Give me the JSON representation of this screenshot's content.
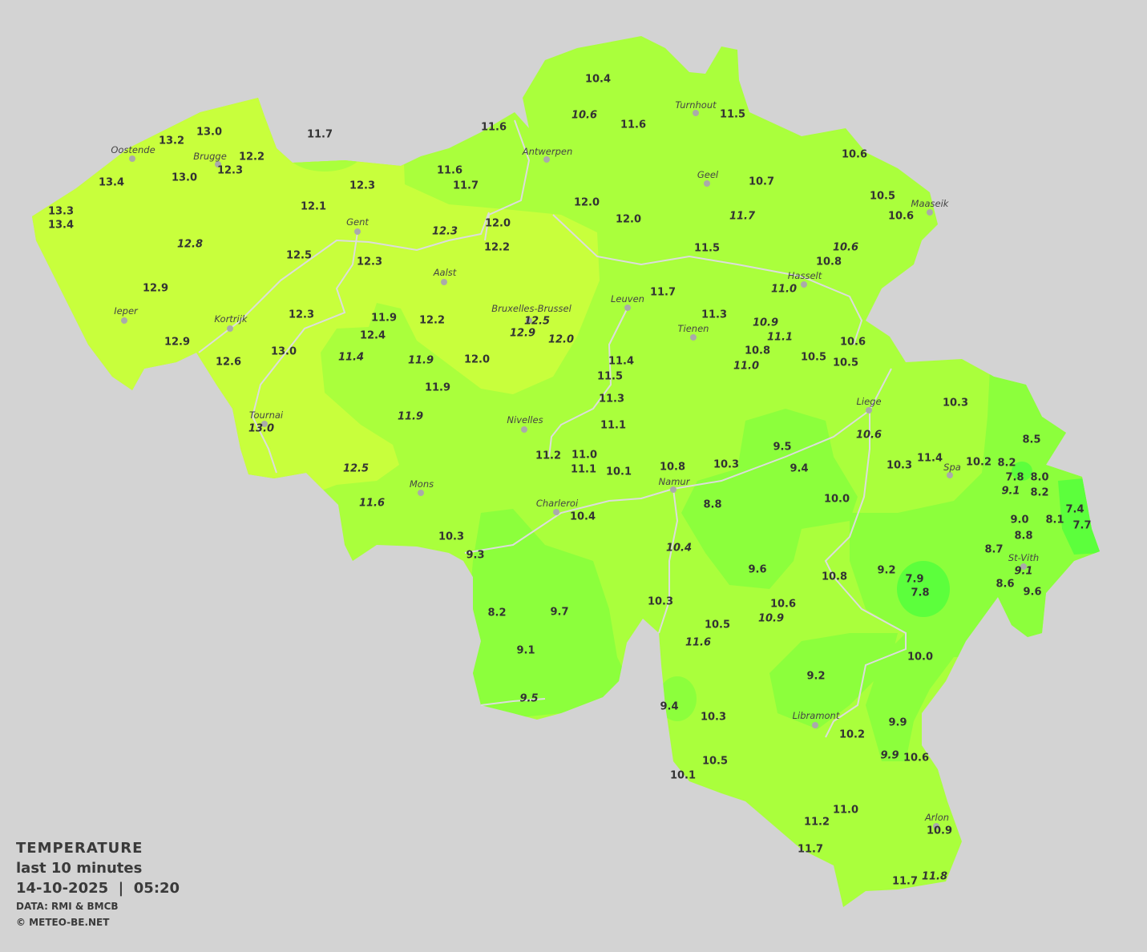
{
  "legend": {
    "title": "TEMPERATURE",
    "subtitle": "last 10 minutes",
    "datetime": "14-10-2025  |  05:20",
    "data_source": "DATA: RMI & BMCB",
    "copyright": "© METEO-BE.NET"
  },
  "colors": {
    "background": "#d3d3d3",
    "warm_12_13": "#c8ff3c",
    "mild_10_12": "#aaff3c",
    "cool_8_10": "#8cff3c",
    "cold_below_8": "#5cff3c",
    "borders": "#dcdcdc",
    "city_dot": "#aaaaaa"
  },
  "cities": [
    "Turnhout",
    "Oostende",
    "Brugge",
    "Antwerpen",
    "Geel",
    "Maaseik",
    "Gent",
    "Hasselt",
    "Aalst",
    "Leuven",
    "Ieper",
    "Bruxelles-Brussel",
    "Kortrijk",
    "Tienen",
    "Liege",
    "Tournai",
    "Nivelles",
    "Spa",
    "Namur",
    "Mons",
    "Charleroi",
    "St-Vith",
    "Libramont",
    "Arlon"
  ],
  "stations": [
    {
      "t": "10.4",
      "italic": false
    },
    {
      "t": "10.6",
      "italic": true
    },
    {
      "t": "11.6",
      "italic": false
    },
    {
      "t": "11.5",
      "italic": false
    },
    {
      "t": "11.6",
      "italic": false
    },
    {
      "t": "11.7",
      "italic": false
    },
    {
      "t": "13.0",
      "italic": false
    },
    {
      "t": "13.2",
      "italic": false
    },
    {
      "t": "12.2",
      "italic": false
    },
    {
      "t": "12.3",
      "italic": false
    },
    {
      "t": "10.6",
      "italic": false
    },
    {
      "t": "11.6",
      "italic": false
    },
    {
      "t": "11.7",
      "italic": false
    },
    {
      "t": "13.4",
      "italic": false
    },
    {
      "t": "13.0",
      "italic": false
    },
    {
      "t": "12.3",
      "italic": false
    },
    {
      "t": "10.7",
      "italic": false
    },
    {
      "t": "10.5",
      "italic": false
    },
    {
      "t": "10.6",
      "italic": false
    },
    {
      "t": "12.0",
      "italic": false
    },
    {
      "t": "12.0",
      "italic": false
    },
    {
      "t": "11.7",
      "italic": true
    },
    {
      "t": "13.3",
      "italic": false
    },
    {
      "t": "13.4",
      "italic": false
    },
    {
      "t": "12.1",
      "italic": false
    },
    {
      "t": "12.0",
      "italic": false
    },
    {
      "t": "12.3",
      "italic": true
    },
    {
      "t": "12.2",
      "italic": false
    },
    {
      "t": "12.8",
      "italic": true
    },
    {
      "t": "12.5",
      "italic": false
    },
    {
      "t": "12.3",
      "italic": false
    },
    {
      "t": "11.5",
      "italic": false
    },
    {
      "t": "10.6",
      "italic": true
    },
    {
      "t": "10.8",
      "italic": false
    },
    {
      "t": "11.0",
      "italic": true
    },
    {
      "t": "12.9",
      "italic": false
    },
    {
      "t": "11.7",
      "italic": false
    },
    {
      "t": "12.5",
      "italic": true
    },
    {
      "t": "12.9",
      "italic": true
    },
    {
      "t": "12.0",
      "italic": true
    },
    {
      "t": "11.3",
      "italic": false
    },
    {
      "t": "12.3",
      "italic": false
    },
    {
      "t": "11.9",
      "italic": false
    },
    {
      "t": "12.2",
      "italic": false
    },
    {
      "t": "10.9",
      "italic": true
    },
    {
      "t": "11.1",
      "italic": true
    },
    {
      "t": "12.4",
      "italic": false
    },
    {
      "t": "12.9",
      "italic": false
    },
    {
      "t": "13.0",
      "italic": false
    },
    {
      "t": "11.4",
      "italic": true
    },
    {
      "t": "11.9",
      "italic": true
    },
    {
      "t": "12.0",
      "italic": false
    },
    {
      "t": "11.4",
      "italic": false
    },
    {
      "t": "10.8",
      "italic": false
    },
    {
      "t": "11.0",
      "italic": true
    },
    {
      "t": "10.5",
      "italic": false
    },
    {
      "t": "10.6",
      "italic": false
    },
    {
      "t": "10.5",
      "italic": false
    },
    {
      "t": "12.6",
      "italic": false
    },
    {
      "t": "11.5",
      "italic": false
    },
    {
      "t": "11.9",
      "italic": false
    },
    {
      "t": "11.3",
      "italic": false
    },
    {
      "t": "10.3",
      "italic": false
    },
    {
      "t": "13.0",
      "italic": true
    },
    {
      "t": "11.9",
      "italic": true
    },
    {
      "t": "11.1",
      "italic": false
    },
    {
      "t": "10.6",
      "italic": true
    },
    {
      "t": "8.5",
      "italic": false
    },
    {
      "t": "9.5",
      "italic": false
    },
    {
      "t": "11.2",
      "italic": false
    },
    {
      "t": "11.0",
      "italic": false
    },
    {
      "t": "11.1",
      "italic": false
    },
    {
      "t": "10.1",
      "italic": false
    },
    {
      "t": "10.8",
      "italic": false
    },
    {
      "t": "10.3",
      "italic": false
    },
    {
      "t": "9.4",
      "italic": false
    },
    {
      "t": "10.3",
      "italic": false
    },
    {
      "t": "11.4",
      "italic": false
    },
    {
      "t": "10.2",
      "italic": false
    },
    {
      "t": "8.2",
      "italic": false
    },
    {
      "t": "7.8",
      "italic": false
    },
    {
      "t": "8.0",
      "italic": false
    },
    {
      "t": "9.1",
      "italic": true
    },
    {
      "t": "8.2",
      "italic": false
    },
    {
      "t": "12.5",
      "italic": true
    },
    {
      "t": "11.6",
      "italic": true
    },
    {
      "t": "10.4",
      "italic": false
    },
    {
      "t": "8.8",
      "italic": false
    },
    {
      "t": "10.0",
      "italic": false
    },
    {
      "t": "7.4",
      "italic": false
    },
    {
      "t": "9.0",
      "italic": false
    },
    {
      "t": "8.1",
      "italic": false
    },
    {
      "t": "7.7",
      "italic": false
    },
    {
      "t": "8.8",
      "italic": false
    },
    {
      "t": "10.3",
      "italic": false
    },
    {
      "t": "9.3",
      "italic": false
    },
    {
      "t": "10.4",
      "italic": true
    },
    {
      "t": "8.7",
      "italic": false
    },
    {
      "t": "9.1",
      "italic": true
    },
    {
      "t": "9.6",
      "italic": false
    },
    {
      "t": "9.2",
      "italic": false
    },
    {
      "t": "10.8",
      "italic": false
    },
    {
      "t": "7.9",
      "italic": false
    },
    {
      "t": "7.8",
      "italic": false
    },
    {
      "t": "8.6",
      "italic": false
    },
    {
      "t": "9.6",
      "italic": false
    },
    {
      "t": "10.3",
      "italic": false
    },
    {
      "t": "10.6",
      "italic": false
    },
    {
      "t": "10.9",
      "italic": true
    },
    {
      "t": "8.2",
      "italic": false
    },
    {
      "t": "9.7",
      "italic": false
    },
    {
      "t": "10.5",
      "italic": false
    },
    {
      "t": "11.6",
      "italic": true
    },
    {
      "t": "9.1",
      "italic": false
    },
    {
      "t": "10.0",
      "italic": false
    },
    {
      "t": "9.2",
      "italic": false
    },
    {
      "t": "9.5",
      "italic": true
    },
    {
      "t": "9.4",
      "italic": false
    },
    {
      "t": "10.3",
      "italic": false
    },
    {
      "t": "10.2",
      "italic": false
    },
    {
      "t": "9.9",
      "italic": false
    },
    {
      "t": "9.9",
      "italic": true
    },
    {
      "t": "10.6",
      "italic": false
    },
    {
      "t": "10.5",
      "italic": false
    },
    {
      "t": "10.1",
      "italic": false
    },
    {
      "t": "11.0",
      "italic": false
    },
    {
      "t": "11.2",
      "italic": false
    },
    {
      "t": "10.9",
      "italic": false
    },
    {
      "t": "11.7",
      "italic": false
    },
    {
      "t": "11.7",
      "italic": false
    },
    {
      "t": "11.8",
      "italic": true
    }
  ]
}
